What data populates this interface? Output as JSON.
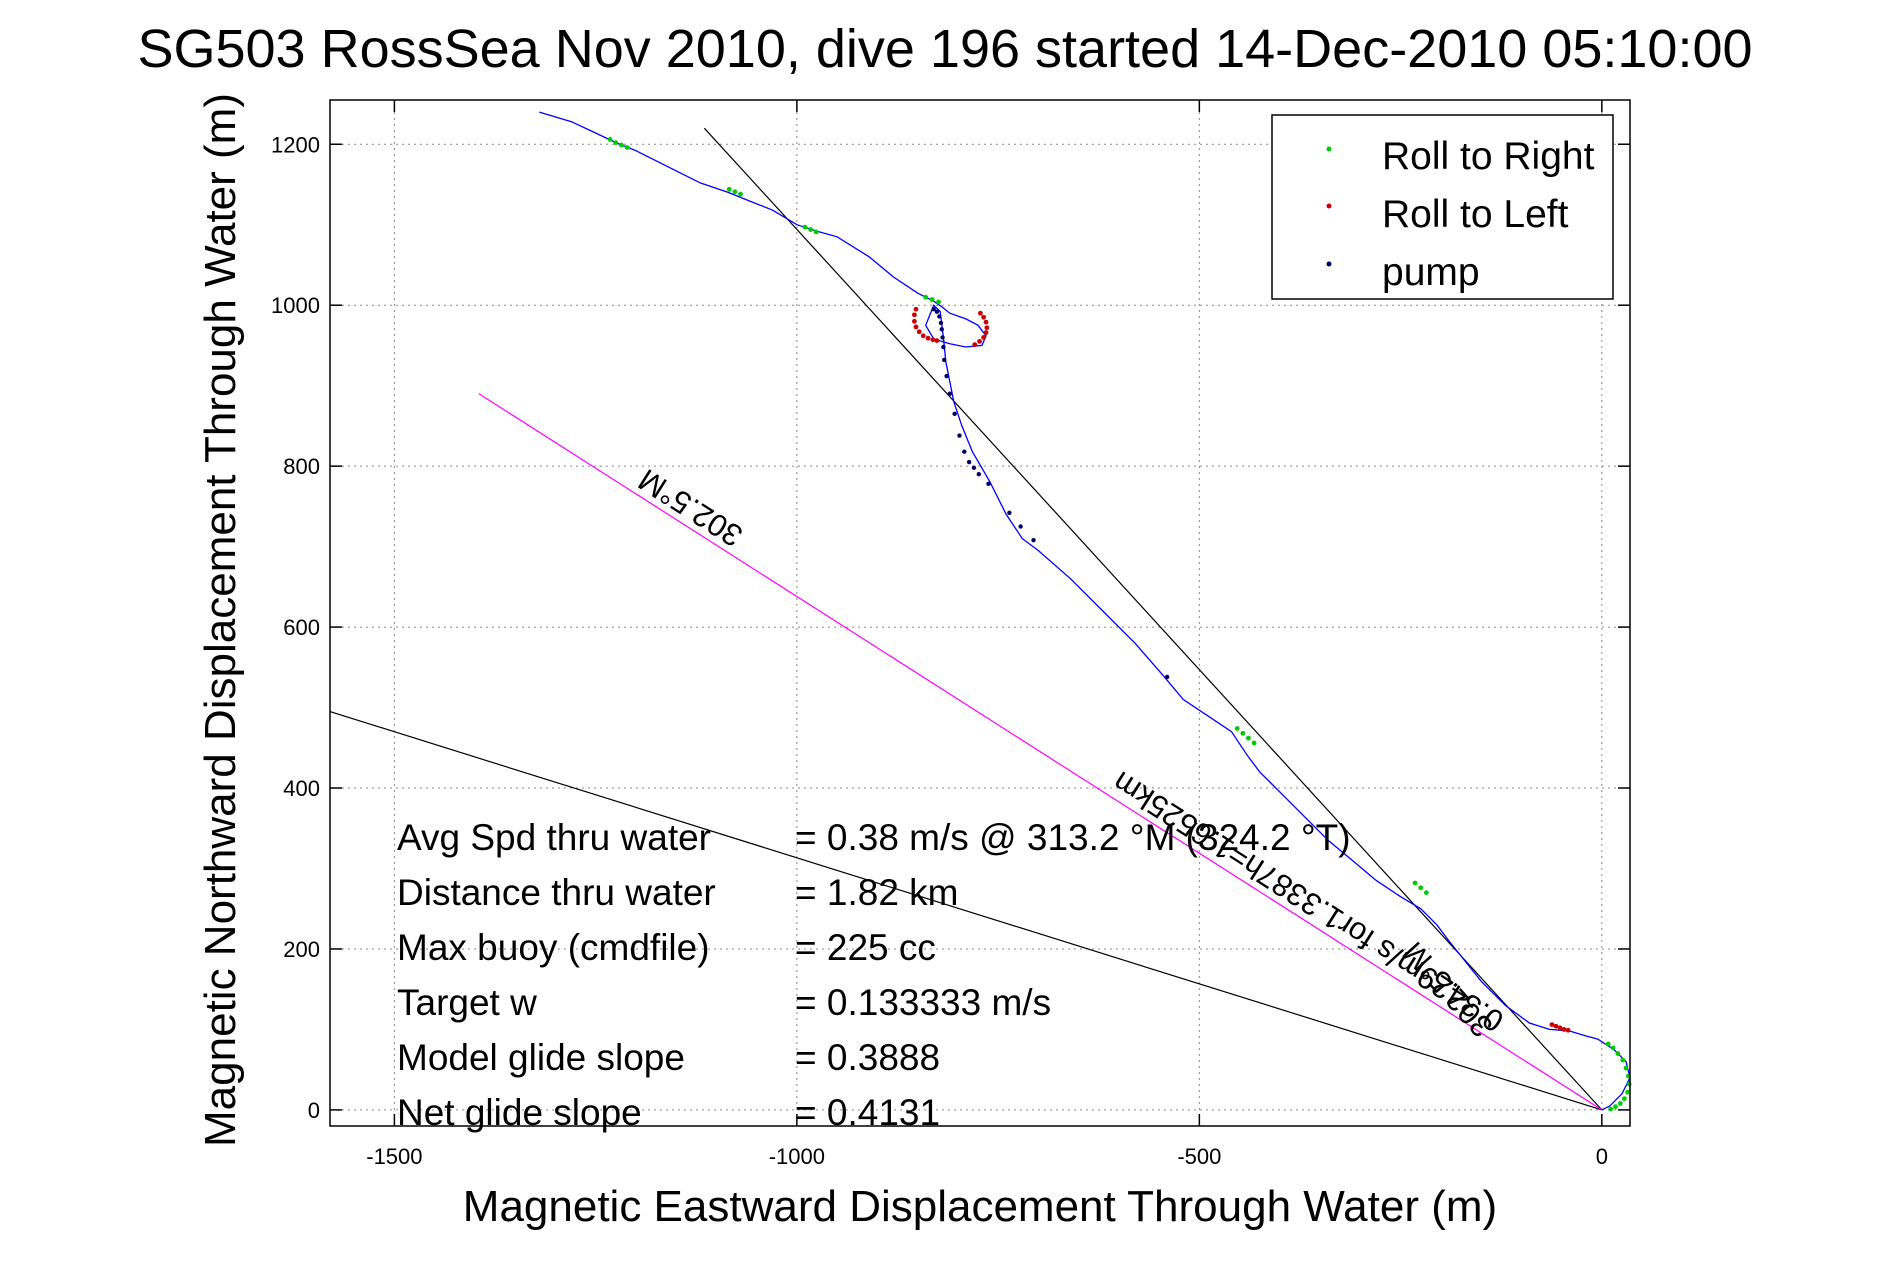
{
  "chart_data": {
    "type": "line",
    "title": "SG503 RossSea Nov 2010, dive 196 started 14-Dec-2010 05:10:00",
    "xlabel": "Magnetic Eastward Displacement Through Water (m)",
    "ylabel": "Magnetic Northward Displacement Through Water (m)",
    "xlim": [
      -1580,
      35
    ],
    "ylim": [
      -20,
      1255
    ],
    "xticks": [
      -1500,
      -1000,
      -500,
      0
    ],
    "yticks": [
      0,
      200,
      400,
      600,
      800,
      1000,
      1200
    ],
    "grid": true,
    "legend_position": "top-right",
    "legend": [
      "Roll to Right",
      "Roll to Left",
      "pump"
    ],
    "colors": {
      "track": "#0000ff",
      "roll_right": "#00cc00",
      "roll_left": "#cc0000",
      "pump": "#000066",
      "heading_line": "#ff00ff",
      "reference_line": "#000000",
      "grid": "#888888"
    },
    "series": [
      {
        "name": "track",
        "x": [
          -1320,
          -1280,
          -1250,
          -1225,
          -1200,
          -1160,
          -1120,
          -1085,
          -1060,
          -1030,
          -1000,
          -975,
          -950,
          -910,
          -880,
          -850,
          -830,
          -820,
          -810,
          -790,
          -775,
          -765,
          -770,
          -790,
          -810,
          -830,
          -840,
          -830,
          -822,
          -818,
          -815,
          -810,
          -805,
          -795,
          -782,
          -760,
          -740,
          -720,
          -700,
          -660,
          -620,
          -580,
          -545,
          -520,
          -490,
          -460,
          -440,
          -425,
          -410,
          -395,
          -380,
          -360,
          -340,
          -310,
          -280,
          -250,
          -225,
          -205,
          -190,
          -170,
          -150,
          -120,
          -90,
          -65,
          -40,
          -20,
          -5,
          15,
          30,
          35,
          25,
          10,
          0
        ],
        "y": [
          1240,
          1228,
          1214,
          1202,
          1192,
          1172,
          1152,
          1140,
          1130,
          1118,
          1100,
          1092,
          1085,
          1060,
          1035,
          1015,
          1005,
          998,
          990,
          983,
          975,
          962,
          950,
          948,
          952,
          958,
          975,
          1000,
          992,
          960,
          930,
          905,
          880,
          850,
          818,
          780,
          740,
          710,
          695,
          660,
          620,
          580,
          540,
          510,
          490,
          470,
          440,
          420,
          405,
          390,
          375,
          355,
          335,
          310,
          285,
          265,
          250,
          230,
          210,
          185,
          160,
          130,
          108,
          100,
          98,
          92,
          88,
          75,
          60,
          40,
          20,
          5,
          0
        ]
      },
      {
        "name": "Roll to Right",
        "x": [
          -1232,
          -1225,
          -1218,
          -1211,
          -1084,
          -1077,
          -1070,
          -990,
          -983,
          -976,
          -840,
          -832,
          -824,
          -453,
          -446,
          -439,
          -432,
          -232,
          -225,
          -218,
          8,
          14,
          20,
          26,
          30,
          33,
          34,
          32,
          28,
          23,
          17,
          11
        ],
        "y": [
          1206,
          1202,
          1199,
          1196,
          1144,
          1141,
          1138,
          1097,
          1094,
          1091,
          1010,
          1007,
          1004,
          474,
          468,
          462,
          456,
          282,
          276,
          270,
          82,
          77,
          70,
          62,
          52,
          42,
          32,
          22,
          14,
          8,
          4,
          1
        ]
      },
      {
        "name": "Roll to Left",
        "x": [
          -852,
          -854,
          -854,
          -852,
          -848,
          -843,
          -837,
          -831,
          -826,
          -772,
          -768,
          -765,
          -764,
          -765,
          -768,
          -773,
          -779
        ],
        "y": [
          995,
          988,
          980,
          973,
          967,
          962,
          959,
          957,
          956,
          990,
          985,
          979,
          972,
          966,
          960,
          955,
          951
        ],
        "extra_x": [
          -62,
          -57,
          -52,
          -47,
          -42
        ],
        "extra_y": [
          106,
          104,
          102,
          100,
          99
        ]
      },
      {
        "name": "pump",
        "x": [
          -830,
          -826,
          -823,
          -821,
          -820,
          -819,
          -818,
          -817,
          -814,
          -810,
          -804,
          -798,
          -792,
          -786,
          -780,
          -774,
          -762,
          -736,
          -722,
          -706,
          -540
        ],
        "y": [
          995,
          992,
          986,
          978,
          970,
          960,
          948,
          932,
          912,
          890,
          865,
          838,
          818,
          805,
          798,
          790,
          778,
          742,
          725,
          708,
          538
        ]
      }
    ],
    "reference_lines": [
      {
        "x": [
          -1115,
          0
        ],
        "y": [
          1220,
          0
        ]
      },
      {
        "x": [
          -1580,
          0
        ],
        "y": [
          495,
          0
        ]
      },
      {
        "x": [
          -1395,
          0
        ],
        "y": [
          890,
          0
        ]
      }
    ],
    "rotated_labels": [
      "302.5°M",
      "0.3429m/s for1.3387h=1.6525km",
      "302.5°M"
    ],
    "info_box": [
      {
        "label": "Avg Spd thru water",
        "value": "=  0.38 m/s @ 313.2 °M (324.2 °T)"
      },
      {
        "label": "Distance thru water",
        "value": "=  1.82 km"
      },
      {
        "label": "Max buoy (cmdfile)",
        "value": "= 225 cc"
      },
      {
        "label": "Target w",
        "value": "= 0.133333 m/s"
      },
      {
        "label": "Model glide slope",
        "value": "= 0.3888"
      },
      {
        "label": "Net glide slope",
        "value": "= 0.4131"
      }
    ]
  }
}
